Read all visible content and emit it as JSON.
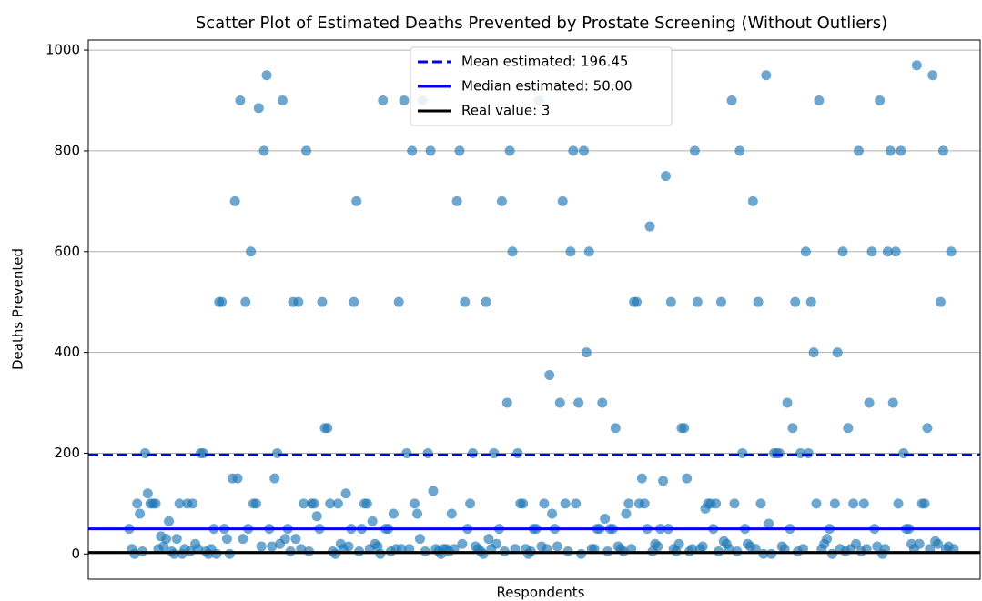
{
  "chart_data": {
    "type": "scatter",
    "title": "Scatter Plot of Estimated Deaths Prevented by Prostate Screening (Without Outliers)",
    "xlabel": "Respondents",
    "ylabel": "Deaths Prevented",
    "color": "#1f77b4",
    "ylim": [
      -50,
      1020
    ],
    "yticks": [
      0,
      200,
      400,
      600,
      800,
      1000
    ],
    "grid": true,
    "legend": "upper center",
    "lines": [
      {
        "name": "Mean estimated: 196.45",
        "value": 196.45,
        "color": "#0000ff",
        "style": "dashed"
      },
      {
        "name": "Median estimated: 50.00",
        "value": 50,
        "color": "#0000ff",
        "style": "solid"
      },
      {
        "name": "Real value: 3",
        "value": 3,
        "color": "#000000",
        "style": "solid"
      }
    ],
    "values": [
      50,
      10,
      0,
      100,
      80,
      5,
      200,
      120,
      100,
      100,
      100,
      10,
      35,
      15,
      30,
      65,
      5,
      0,
      30,
      100,
      0,
      10,
      100,
      5,
      100,
      20,
      10,
      200,
      200,
      5,
      0,
      10,
      50,
      0,
      500,
      500,
      50,
      30,
      0,
      150,
      700,
      150,
      900,
      30,
      500,
      50,
      600,
      100,
      100,
      885,
      15,
      800,
      950,
      50,
      15,
      150,
      200,
      20,
      900,
      30,
      50,
      5,
      500,
      30,
      500,
      10,
      100,
      800,
      5,
      100,
      100,
      75,
      50,
      500,
      250,
      250,
      100,
      5,
      0,
      100,
      20,
      10,
      120,
      15,
      50,
      500,
      700,
      5,
      50,
      100,
      100,
      10,
      65,
      20,
      15,
      0,
      900,
      50,
      50,
      5,
      80,
      10,
      500,
      10,
      900,
      200,
      10,
      800,
      100,
      80,
      30,
      900,
      5,
      200,
      800,
      125,
      10,
      5,
      0,
      10,
      10,
      5,
      80,
      10,
      700,
      800,
      20,
      500,
      50,
      100,
      200,
      15,
      10,
      5,
      0,
      500,
      30,
      10,
      200,
      20,
      50,
      700,
      5,
      300,
      800,
      600,
      10,
      200,
      100,
      100,
      10,
      0,
      5,
      50,
      50,
      900,
      15,
      100,
      10,
      355,
      80,
      50,
      15,
      300,
      700,
      100,
      5,
      600,
      800,
      100,
      300,
      0,
      800,
      400,
      600,
      10,
      10,
      50,
      50,
      300,
      70,
      5,
      50,
      50,
      250,
      15,
      10,
      5,
      80,
      100,
      10,
      500,
      500,
      100,
      150,
      100,
      50,
      650,
      5,
      20,
      15,
      50,
      145,
      750,
      50,
      500,
      10,
      5,
      20,
      250,
      250,
      150,
      5,
      10,
      800,
      500,
      10,
      15,
      90,
      100,
      100,
      50,
      100,
      5,
      500,
      25,
      20,
      10,
      900,
      100,
      5,
      800,
      200,
      50,
      20,
      15,
      700,
      10,
      500,
      100,
      0,
      950,
      60,
      0,
      200,
      200,
      200,
      15,
      10,
      300,
      50,
      250,
      500,
      5,
      200,
      10,
      600,
      200,
      500,
      400,
      100,
      900,
      10,
      20,
      30,
      50,
      0,
      100,
      400,
      10,
      600,
      5,
      250,
      10,
      100,
      20,
      800,
      5,
      100,
      10,
      300,
      600,
      50,
      15,
      900,
      0,
      10,
      600,
      800,
      300,
      600,
      100,
      800,
      200,
      50,
      50,
      20,
      10,
      970,
      20,
      100,
      100,
      250,
      10,
      950,
      25,
      20,
      500,
      800,
      10,
      15,
      600,
      10
    ]
  }
}
